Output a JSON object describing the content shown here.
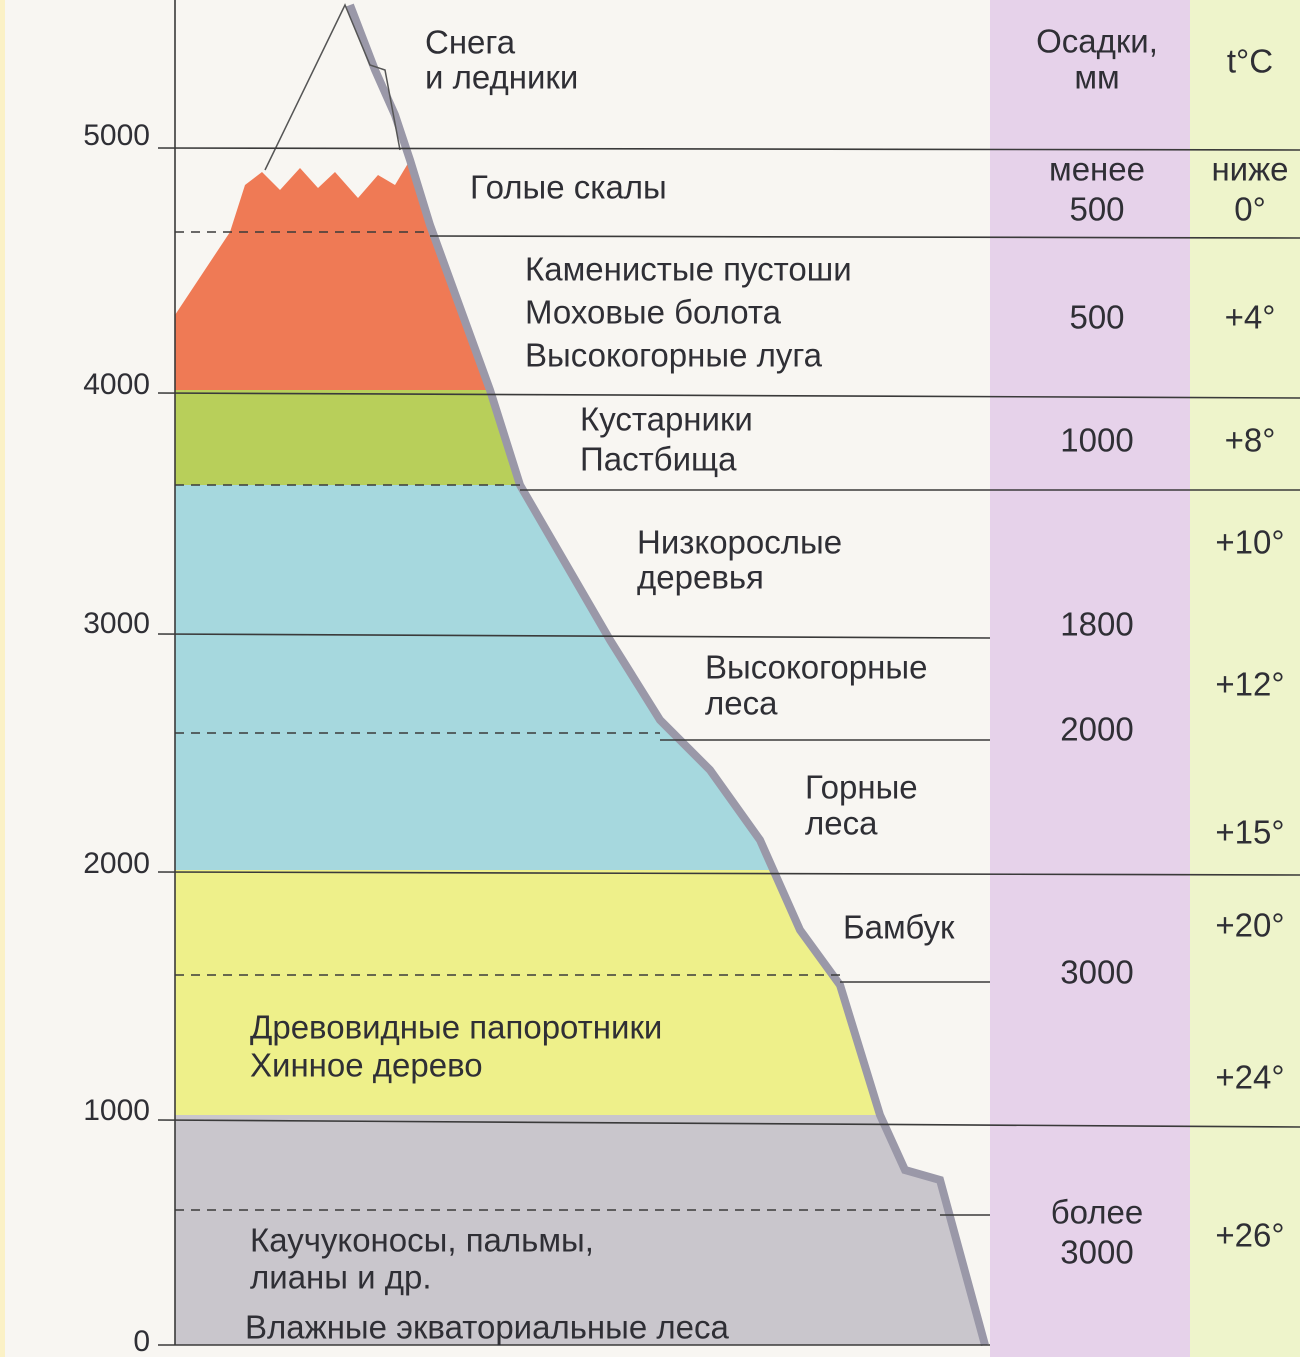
{
  "axis": {
    "ticks": [
      "5000",
      "4000",
      "3000",
      "2000",
      "1000",
      "0"
    ]
  },
  "columns": {
    "precipitation": [
      "Осадки,",
      "мм"
    ],
    "temperature": "t°C"
  },
  "zones": [
    [
      "Снега",
      "и ледники"
    ],
    [
      "Голые скалы"
    ],
    [
      "Каменистые пустоши",
      "Моховые болота",
      "Высокогорные луга"
    ],
    [
      "Кустарники",
      "Пастбища"
    ],
    [
      "Низкорослые",
      "деревья"
    ],
    [
      "Высокогорные",
      "леса"
    ],
    [
      "Горные",
      "леса"
    ],
    [
      "Бамбук"
    ],
    [
      "Древовидные папоротники",
      "Хинное дерево"
    ],
    [
      "Каучуконосы, пальмы,",
      "лианы и др."
    ],
    [
      "Влажные экваториальные леса"
    ]
  ],
  "precipitation": [
    [
      "менее",
      "500"
    ],
    [
      "500"
    ],
    [
      "1000"
    ],
    [
      "1800"
    ],
    [
      "2000"
    ],
    [
      "3000"
    ],
    [
      "более",
      "3000"
    ]
  ],
  "temperature": [
    [
      "ниже",
      "0°"
    ],
    [
      "+4°"
    ],
    [
      "+8°"
    ],
    [
      "+10°"
    ],
    [
      "+12°"
    ],
    [
      "+15°"
    ],
    [
      "+20°"
    ],
    [
      "+24°"
    ],
    [
      "+26°"
    ]
  ]
}
